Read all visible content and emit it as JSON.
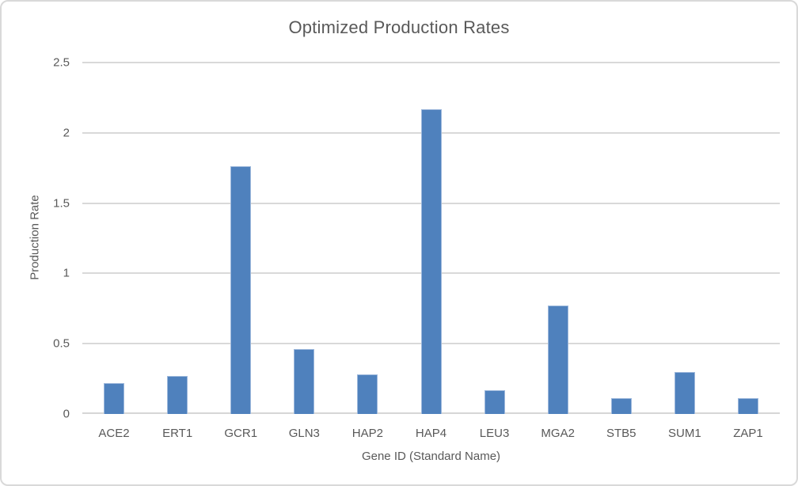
{
  "chart_data": {
    "type": "bar",
    "title": "Optimized Production Rates",
    "xlabel": "Gene ID (Standard Name)",
    "ylabel": "Production Rate",
    "categories": [
      "ACE2",
      "ERT1",
      "GCR1",
      "GLN3",
      "HAP2",
      "HAP4",
      "LEU3",
      "MGA2",
      "STB5",
      "SUM1",
      "ZAP1"
    ],
    "values": [
      0.22,
      0.27,
      1.76,
      0.46,
      0.28,
      2.17,
      0.17,
      0.77,
      0.11,
      0.3,
      0.11
    ],
    "ylim": [
      0,
      2.5
    ],
    "yticks": [
      0,
      0.5,
      1,
      1.5,
      2,
      2.5
    ],
    "grid": "horizontal",
    "legend": "none",
    "colors": {
      "bar_fill": "#4f81bd",
      "bar_edge": "#9db8dc",
      "gridline": "#d9d9d9",
      "axis_line": "#d6d6d6",
      "text": "#595959",
      "frame_border": "#d9d9d9",
      "background": "#ffffff"
    }
  }
}
